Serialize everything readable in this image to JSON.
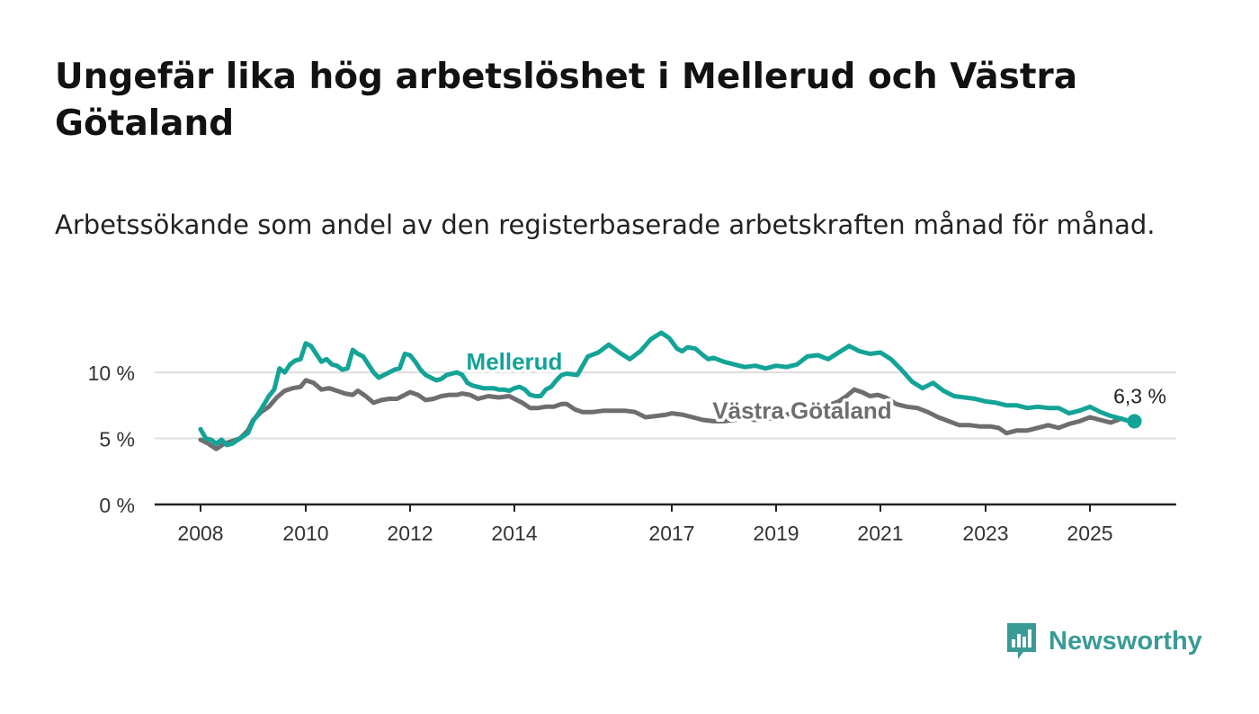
{
  "title": "Ungefär lika hög arbetslöshet i Mellerud och Västra Götaland",
  "subtitle": "Arbetssökande som andel av den registerbaserade arbetskraften månad för månad.",
  "brand": {
    "name": "Newsworthy",
    "icon": "bar-chart-speech-bubble-icon"
  },
  "colors": {
    "mellerud": "#13a397",
    "vastra": "#6e6e70",
    "axis": "#222222",
    "grid": "#dddddd",
    "brand": "#3a9b96"
  },
  "chart_data": {
    "type": "line",
    "title": "Ungefär lika hög arbetslöshet i Mellerud och Västra Götaland",
    "xlabel": "",
    "ylabel": "",
    "xlim": [
      2007.75,
      2027.5
    ],
    "ylim": [
      0,
      13
    ],
    "x_ticks": [
      2008,
      2010,
      2012,
      2014,
      2017,
      2019,
      2021,
      2023,
      2025
    ],
    "x_tick_labels": [
      "2008",
      "2010",
      "2012",
      "2014",
      "2017",
      "2019",
      "2021",
      "2023",
      "2025"
    ],
    "y_ticks": [
      0,
      5,
      10
    ],
    "y_tick_labels": [
      "0 %",
      "5 %",
      "10 %"
    ],
    "end_label": "6,3 %",
    "series": [
      {
        "name": "Mellerud",
        "label_at": [
          2014.0,
          10.2
        ],
        "x": [
          2008.0,
          2008.1,
          2008.2,
          2008.3,
          2008.4,
          2008.5,
          2008.6,
          2008.75,
          2008.9,
          2009.0,
          2009.15,
          2009.3,
          2009.4,
          2009.5,
          2009.6,
          2009.7,
          2009.8,
          2009.9,
          2010.0,
          2010.1,
          2010.2,
          2010.3,
          2010.4,
          2010.5,
          2010.6,
          2010.7,
          2010.8,
          2010.9,
          2011.0,
          2011.1,
          2011.2,
          2011.3,
          2011.4,
          2011.5,
          2011.6,
          2011.7,
          2011.8,
          2011.9,
          2012.0,
          2012.1,
          2012.2,
          2012.3,
          2012.4,
          2012.5,
          2012.6,
          2012.7,
          2012.8,
          2012.9,
          2013.0,
          2013.1,
          2013.2,
          2013.3,
          2013.4,
          2013.5,
          2013.6,
          2013.7,
          2013.8,
          2013.9,
          2014.0,
          2014.1,
          2014.2,
          2014.3,
          2014.4,
          2014.5,
          2014.6,
          2014.7,
          2014.8,
          2014.9,
          2015.0,
          2015.2,
          2015.4,
          2015.6,
          2015.8,
          2016.0,
          2016.2,
          2016.4,
          2016.6,
          2016.8,
          2016.95,
          2017.1,
          2017.2,
          2017.3,
          2017.45,
          2017.6,
          2017.7,
          2017.8,
          2018.0,
          2018.2,
          2018.4,
          2018.6,
          2018.8,
          2019.0,
          2019.2,
          2019.4,
          2019.6,
          2019.8,
          2020.0,
          2020.2,
          2020.4,
          2020.6,
          2020.8,
          2021.0,
          2021.2,
          2021.4,
          2021.6,
          2021.8,
          2022.0,
          2022.2,
          2022.4,
          2022.6,
          2022.8,
          2023.0,
          2023.2,
          2023.4,
          2023.6,
          2023.8,
          2024.0,
          2024.2,
          2024.4,
          2024.6,
          2024.8,
          2025.0,
          2025.2,
          2025.4,
          2025.6,
          2025.75
        ],
        "values": [
          5.7,
          5.0,
          4.9,
          4.6,
          4.9,
          4.5,
          4.6,
          5.0,
          5.4,
          6.3,
          7.2,
          8.2,
          8.7,
          10.3,
          10.0,
          10.6,
          10.9,
          11.0,
          12.2,
          12.0,
          11.4,
          10.8,
          11.0,
          10.6,
          10.5,
          10.2,
          10.3,
          11.7,
          11.4,
          11.2,
          10.6,
          10.0,
          9.6,
          9.8,
          10.0,
          10.2,
          10.3,
          11.4,
          11.3,
          10.8,
          10.2,
          9.8,
          9.6,
          9.4,
          9.5,
          9.8,
          9.9,
          10.0,
          9.8,
          9.2,
          9.0,
          8.9,
          8.8,
          8.8,
          8.8,
          8.7,
          8.7,
          8.6,
          8.8,
          8.9,
          8.7,
          8.3,
          8.2,
          8.2,
          8.7,
          8.9,
          9.4,
          9.8,
          9.9,
          9.8,
          11.2,
          11.5,
          12.1,
          11.5,
          11.0,
          11.6,
          12.5,
          13.0,
          12.6,
          11.8,
          11.6,
          11.9,
          11.8,
          11.3,
          11.0,
          11.1,
          10.8,
          10.6,
          10.4,
          10.5,
          10.3,
          10.5,
          10.4,
          10.6,
          11.2,
          11.3,
          11.0,
          11.5,
          12.0,
          11.6,
          11.4,
          11.5,
          11.0,
          10.2,
          9.3,
          8.8,
          9.2,
          8.6,
          8.2,
          8.1,
          8.0,
          7.8,
          7.7,
          7.5,
          7.5,
          7.3,
          7.4,
          7.3,
          7.3,
          6.9,
          7.1,
          7.4,
          7.0,
          6.7,
          6.5,
          6.3
        ]
      },
      {
        "name": "Västra Götaland",
        "label_at": [
          2019.5,
          6.5
        ],
        "x": [
          2008.0,
          2008.15,
          2008.3,
          2008.45,
          2008.6,
          2008.75,
          2008.9,
          2009.0,
          2009.15,
          2009.3,
          2009.45,
          2009.6,
          2009.75,
          2009.9,
          2010.0,
          2010.15,
          2010.3,
          2010.45,
          2010.6,
          2010.75,
          2010.9,
          2011.0,
          2011.15,
          2011.3,
          2011.45,
          2011.6,
          2011.75,
          2011.9,
          2012.0,
          2012.15,
          2012.3,
          2012.45,
          2012.6,
          2012.75,
          2012.9,
          2013.0,
          2013.15,
          2013.3,
          2013.5,
          2013.7,
          2013.9,
          2014.0,
          2014.15,
          2014.3,
          2014.45,
          2014.6,
          2014.75,
          2014.9,
          2015.0,
          2015.15,
          2015.3,
          2015.5,
          2015.7,
          2015.9,
          2016.1,
          2016.3,
          2016.5,
          2016.7,
          2016.9,
          2017.0,
          2017.2,
          2017.4,
          2017.6,
          2017.8,
          2018.0,
          2018.2,
          2018.4,
          2018.6,
          2018.8,
          2019.0,
          2019.2,
          2019.4,
          2019.6,
          2019.8,
          2020.0,
          2020.2,
          2020.35,
          2020.5,
          2020.65,
          2020.8,
          2020.95,
          2021.1,
          2021.3,
          2021.5,
          2021.7,
          2021.9,
          2022.1,
          2022.3,
          2022.5,
          2022.7,
          2022.9,
          2023.1,
          2023.25,
          2023.4,
          2023.6,
          2023.8,
          2024.0,
          2024.2,
          2024.4,
          2024.6,
          2024.8,
          2025.0,
          2025.2,
          2025.4,
          2025.6,
          2025.75
        ],
        "values": [
          4.9,
          4.6,
          4.2,
          4.6,
          4.8,
          5.0,
          5.6,
          6.4,
          7.0,
          7.4,
          8.1,
          8.6,
          8.8,
          8.9,
          9.4,
          9.2,
          8.7,
          8.8,
          8.6,
          8.4,
          8.3,
          8.6,
          8.2,
          7.7,
          7.9,
          8.0,
          8.0,
          8.3,
          8.5,
          8.3,
          7.9,
          8.0,
          8.2,
          8.3,
          8.3,
          8.4,
          8.3,
          8.0,
          8.2,
          8.1,
          8.2,
          8.0,
          7.7,
          7.3,
          7.3,
          7.4,
          7.4,
          7.6,
          7.6,
          7.2,
          7.0,
          7.0,
          7.1,
          7.1,
          7.1,
          7.0,
          6.6,
          6.7,
          6.8,
          6.9,
          6.8,
          6.6,
          6.4,
          6.3,
          6.3,
          6.4,
          6.5,
          6.4,
          6.5,
          6.5,
          6.8,
          7.0,
          7.2,
          7.4,
          7.5,
          7.8,
          8.2,
          8.7,
          8.5,
          8.2,
          8.3,
          8.1,
          7.6,
          7.4,
          7.3,
          7.0,
          6.6,
          6.3,
          6.0,
          6.0,
          5.9,
          5.9,
          5.8,
          5.4,
          5.6,
          5.6,
          5.8,
          6.0,
          5.8,
          6.1,
          6.3,
          6.6,
          6.4,
          6.2,
          6.5,
          6.3
        ]
      }
    ]
  }
}
